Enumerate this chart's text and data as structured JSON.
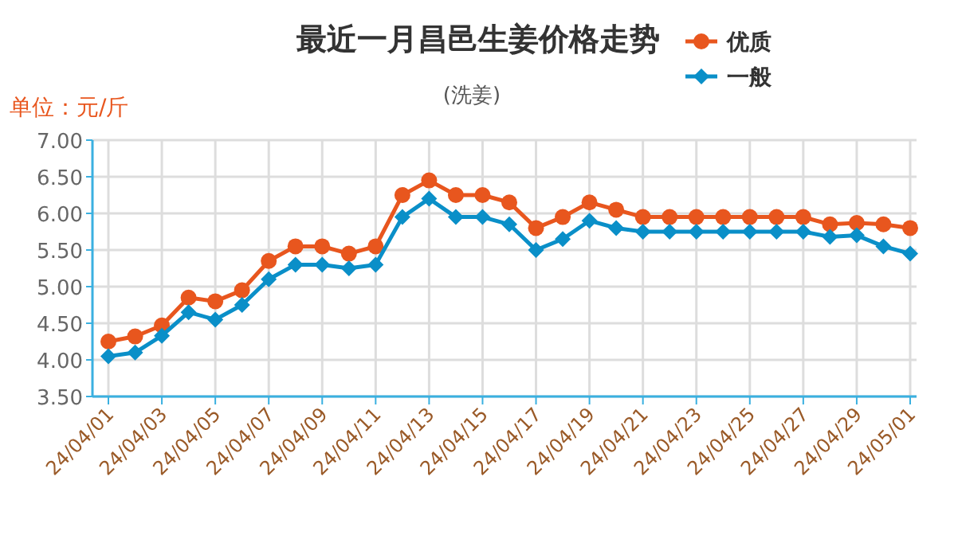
{
  "chart_data": {
    "type": "line",
    "title": "最近一月昌邑生姜价格走势",
    "subtitle": "(洗姜)",
    "annotations": [
      "单位：元/斤"
    ],
    "categories": [
      "24/04/01",
      null,
      "24/04/03",
      null,
      "24/04/05",
      null,
      "24/04/07",
      null,
      "24/04/09",
      null,
      "24/04/11",
      null,
      "24/04/13",
      null,
      "24/04/15",
      null,
      "24/04/17",
      null,
      "24/04/19",
      null,
      "24/04/21",
      null,
      "24/04/23",
      null,
      "24/04/25",
      null,
      "24/04/27",
      null,
      "24/04/29",
      null,
      "24/05/01"
    ],
    "series": [
      {
        "name": "优质",
        "color": "#e8561e",
        "marker": "circle",
        "values": [
          4.25,
          4.32,
          4.47,
          4.85,
          4.8,
          4.95,
          5.35,
          5.55,
          5.55,
          5.45,
          5.55,
          6.25,
          6.45,
          6.25,
          6.25,
          6.15,
          5.8,
          5.95,
          6.15,
          6.05,
          5.95,
          5.95,
          5.95,
          5.95,
          5.95,
          5.95,
          5.95,
          5.85,
          5.87,
          5.85,
          5.8
        ]
      },
      {
        "name": "一般",
        "color": "#0a8fc8",
        "marker": "diamond",
        "values": [
          4.05,
          4.1,
          4.33,
          4.65,
          4.55,
          4.75,
          5.1,
          5.3,
          5.3,
          5.25,
          5.3,
          5.95,
          6.2,
          5.95,
          5.95,
          5.85,
          5.5,
          5.65,
          5.9,
          5.8,
          5.75,
          5.75,
          5.75,
          5.75,
          5.75,
          5.75,
          5.75,
          5.68,
          5.7,
          5.55,
          5.45
        ]
      }
    ],
    "ylim": [
      3.5,
      7.0
    ],
    "yticks": [
      {
        "value": 3.5,
        "label": "3.50"
      },
      {
        "value": 4.0,
        "label": "4.00"
      },
      {
        "value": 4.5,
        "label": "4.50"
      },
      {
        "value": 5.0,
        "label": "5.00"
      },
      {
        "value": 5.5,
        "label": "5.50"
      },
      {
        "value": 6.0,
        "label": "6.00"
      },
      {
        "value": 6.5,
        "label": "6.50"
      },
      {
        "value": 7.0,
        "label": "7.00"
      }
    ],
    "grid": true,
    "legend": "top right",
    "line_style": "solid"
  }
}
